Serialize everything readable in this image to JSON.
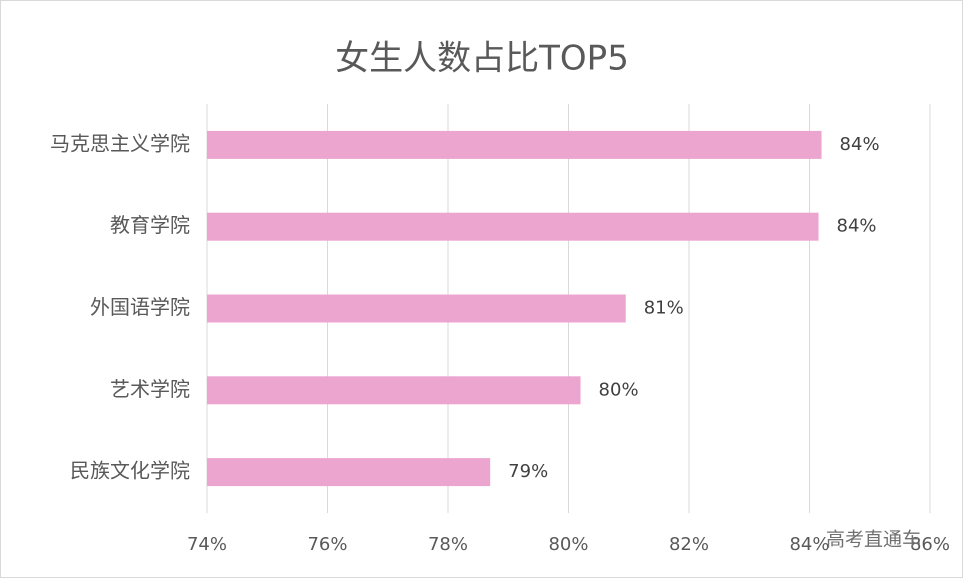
{
  "chart_data": {
    "type": "bar",
    "orientation": "horizontal",
    "title": "女生人数占比TOP5",
    "categories": [
      "马克思主义学院",
      "教育学院",
      "外国语学院",
      "艺术学院",
      "民族文化学院"
    ],
    "values": [
      84.2,
      84.15,
      80.95,
      80.2,
      78.7
    ],
    "value_labels": [
      "84%",
      "84%",
      "81%",
      "80%",
      "79%"
    ],
    "color": "#eba5cf",
    "xlim": [
      74,
      86
    ],
    "xticks": [
      {
        "value": 74,
        "label": "74%"
      },
      {
        "value": 76,
        "label": "76%"
      },
      {
        "value": 78,
        "label": "78%"
      },
      {
        "value": 80,
        "label": "80%"
      },
      {
        "value": 82,
        "label": "82%"
      },
      {
        "value": 84,
        "label": "84%"
      },
      {
        "value": 86,
        "label": "86%"
      }
    ],
    "grid": true,
    "watermark": "高考直通车"
  }
}
